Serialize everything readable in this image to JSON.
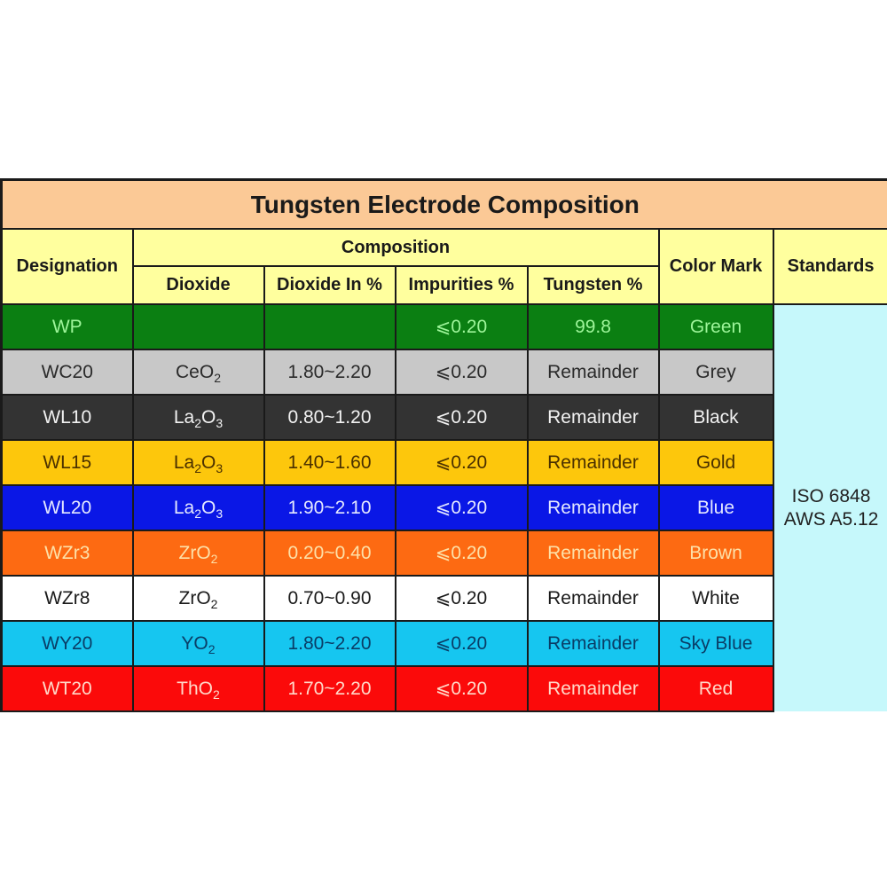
{
  "table": {
    "title": "Tungsten Electrode Composition",
    "headers": {
      "designation": "Designation",
      "composition": "Composition",
      "dioxide": "Dioxide",
      "dioxide_pct": "Dioxide In %",
      "impurities_pct": "Impurities %",
      "tungsten_pct": "Tungsten %",
      "color_mark": "Color Mark",
      "standards": "Standards"
    },
    "standards": {
      "line1": "ISO 6848",
      "line2": "AWS A5.12"
    },
    "colors": {
      "title_bg": "#fbc996",
      "header_bg": "#ffff9e",
      "standards_bg": "#c6f8fb"
    },
    "rows": [
      {
        "designation": "WP",
        "dioxide_base": "",
        "dioxide_a": "",
        "dioxide_mid": "",
        "dioxide_b": "",
        "dioxide_pct": "",
        "impurities": "⩽0.20",
        "tungsten": "99.8",
        "color_mark": "Green",
        "bg": "#0b7f12",
        "fg": "#9ef59a"
      },
      {
        "designation": "WC20",
        "dioxide_base": "CeO",
        "dioxide_a": "",
        "dioxide_mid": "",
        "dioxide_b": "2",
        "dioxide_pct": "1.80~2.20",
        "impurities": "⩽0.20",
        "tungsten": "Remainder",
        "color_mark": "Grey",
        "bg": "#c8c8c8",
        "fg": "#2a2a2a"
      },
      {
        "designation": "WL10",
        "dioxide_base": "La",
        "dioxide_a": "2",
        "dioxide_mid": "O",
        "dioxide_b": "3",
        "dioxide_pct": "0.80~1.20",
        "impurities": "⩽0.20",
        "tungsten": "Remainder",
        "color_mark": "Black",
        "bg": "#333333",
        "fg": "#f2f2f2"
      },
      {
        "designation": "WL15",
        "dioxide_base": "La",
        "dioxide_a": "2",
        "dioxide_mid": "O",
        "dioxide_b": "3",
        "dioxide_pct": "1.40~1.60",
        "impurities": "⩽0.20",
        "tungsten": "Remainder",
        "color_mark": "Gold",
        "bg": "#fdc70c",
        "fg": "#4a3000"
      },
      {
        "designation": "WL20",
        "dioxide_base": "La",
        "dioxide_a": "2",
        "dioxide_mid": "O",
        "dioxide_b": "3",
        "dioxide_pct": "1.90~2.10",
        "impurities": "⩽0.20",
        "tungsten": "Remainder",
        "color_mark": "Blue",
        "bg": "#0a17e6",
        "fg": "#e4e8ff"
      },
      {
        "designation": "WZr3",
        "dioxide_base": "ZrO",
        "dioxide_a": "",
        "dioxide_mid": "",
        "dioxide_b": "2",
        "dioxide_pct": "0.20~0.40",
        "impurities": "⩽0.20",
        "tungsten": "Remainder",
        "color_mark": "Brown",
        "bg": "#fd6a12",
        "fg": "#fde0a8"
      },
      {
        "designation": "WZr8",
        "dioxide_base": "ZrO",
        "dioxide_a": "",
        "dioxide_mid": "",
        "dioxide_b": "2",
        "dioxide_pct": "0.70~0.90",
        "impurities": "⩽0.20",
        "tungsten": "Remainder",
        "color_mark": "White",
        "bg": "#ffffff",
        "fg": "#1a1a1a"
      },
      {
        "designation": "WY20",
        "dioxide_base": "YO",
        "dioxide_a": "",
        "dioxide_mid": "",
        "dioxide_b": "2",
        "dioxide_pct": "1.80~2.20",
        "impurities": "⩽0.20",
        "tungsten": "Remainder",
        "color_mark": "Sky Blue",
        "bg": "#16c6f0",
        "fg": "#0a3d66"
      },
      {
        "designation": "WT20",
        "dioxide_base": "ThO",
        "dioxide_a": "",
        "dioxide_mid": "",
        "dioxide_b": "2",
        "dioxide_pct": "1.70~2.20",
        "impurities": "⩽0.20",
        "tungsten": "Remainder",
        "color_mark": "Red",
        "bg": "#fb0a0a",
        "fg": "#ffd9c9"
      }
    ]
  }
}
